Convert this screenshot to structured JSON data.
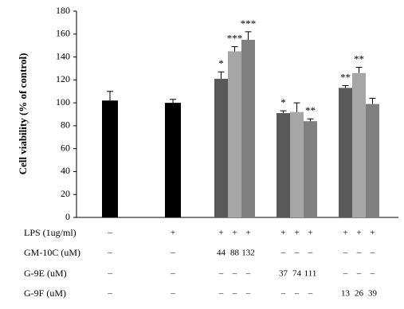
{
  "chart_data": {
    "type": "bar",
    "y_label": "Cell viability (% of control)",
    "ylim": [
      0,
      180
    ],
    "yticks": [
      0,
      20,
      40,
      60,
      80,
      100,
      120,
      140,
      160,
      180
    ],
    "categories": [
      null,
      null,
      null,
      null,
      null,
      null,
      null,
      null,
      null,
      null,
      null
    ],
    "values": [
      102,
      100,
      121,
      145,
      155,
      91,
      92,
      84,
      113,
      126,
      99
    ],
    "errors": [
      8,
      3,
      6,
      4,
      7,
      2,
      8,
      2,
      2,
      5,
      5
    ],
    "colors": [
      "#000000",
      "#000000",
      "#595959",
      "#a6a6a6",
      "#808080",
      "#595959",
      "#a6a6a6",
      "#808080",
      "#595959",
      "#a6a6a6",
      "#808080"
    ],
    "annotations": [
      null,
      null,
      "*",
      "***",
      "***",
      "*",
      null,
      "**",
      "**",
      "**",
      null
    ],
    "conditions": [
      {
        "label": "LPS (1ug/ml)",
        "cells": [
          "–",
          "+",
          "+",
          "+",
          "+",
          "+",
          "+",
          "+",
          "+",
          "+",
          "+"
        ]
      },
      {
        "label": "GM-10C (uM)",
        "cells": [
          "–",
          "–",
          "44",
          "88",
          "132",
          "–",
          "–",
          "–",
          "–",
          "–",
          "–"
        ]
      },
      {
        "label": "G-9E (uM)",
        "cells": [
          "–",
          "–",
          "–",
          "–",
          "–",
          "37",
          "74",
          "111",
          "–",
          "–",
          "–"
        ]
      },
      {
        "label": "G-9F (uM)",
        "cells": [
          "–",
          "–",
          "–",
          "–",
          "–",
          "–",
          "–",
          "–",
          "13",
          "26",
          "39"
        ]
      }
    ]
  }
}
